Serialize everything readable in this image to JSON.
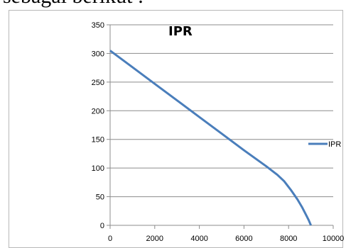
{
  "page": {
    "heading_fragment": "sebagai berikut :"
  },
  "chart_data": {
    "type": "line",
    "title": "IPR",
    "xlabel": "",
    "ylabel": "",
    "xlim": [
      0,
      10000
    ],
    "ylim": [
      0,
      350
    ],
    "x_ticks": [
      0,
      2000,
      4000,
      6000,
      8000,
      10000
    ],
    "y_ticks": [
      0,
      50,
      100,
      150,
      200,
      250,
      300,
      350
    ],
    "grid": "horizontal",
    "legend_position": "right",
    "series": [
      {
        "name": "IPR",
        "color": "#4a7ebb",
        "x": [
          0,
          1000,
          2000,
          3000,
          4000,
          5000,
          6000,
          7000,
          7500,
          7800,
          8100,
          8400,
          8600,
          8800,
          8900,
          9000
        ],
        "y": [
          305,
          276,
          247,
          218,
          189,
          160,
          131,
          103,
          88,
          77,
          62,
          45,
          32,
          17,
          9,
          0
        ]
      }
    ]
  }
}
